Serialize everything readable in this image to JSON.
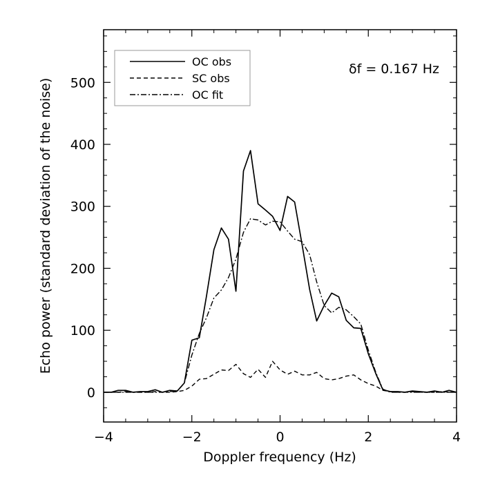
{
  "chart_data": {
    "type": "line",
    "title": "",
    "xlabel": "Doppler frequency (Hz)",
    "ylabel": "Echo power (standard deviation of the noise)",
    "xlim": [
      -4,
      4
    ],
    "ylim": [
      -48,
      585
    ],
    "xticks": [
      -4,
      -2,
      0,
      2,
      4
    ],
    "yticks": [
      0,
      100,
      200,
      300,
      400,
      500
    ],
    "grid": false,
    "legend_position": "top-left",
    "annotation": "δf = 0.167 Hz",
    "series": [
      {
        "name": "OC obs",
        "style": "solid",
        "x": [
          -4.0,
          -3.83,
          -3.67,
          -3.5,
          -3.33,
          -3.17,
          -3.0,
          -2.83,
          -2.67,
          -2.5,
          -2.33,
          -2.17,
          -2.0,
          -1.83,
          -1.67,
          -1.5,
          -1.33,
          -1.17,
          -1.0,
          -0.83,
          -0.67,
          -0.5,
          -0.33,
          -0.17,
          0.0,
          0.17,
          0.33,
          0.5,
          0.67,
          0.83,
          1.0,
          1.17,
          1.33,
          1.5,
          1.67,
          1.83,
          2.0,
          2.17,
          2.33,
          2.5,
          2.67,
          2.83,
          3.0,
          3.17,
          3.33,
          3.5,
          3.67,
          3.83,
          4.0
        ],
        "values": [
          0,
          0,
          3,
          3,
          0,
          1,
          1,
          4,
          0,
          3,
          2,
          15,
          84,
          88,
          154,
          230,
          265,
          247,
          163,
          357,
          390,
          304,
          294,
          284,
          261,
          316,
          307,
          238,
          166,
          115,
          140,
          160,
          154,
          116,
          104,
          103,
          62,
          30,
          4,
          1,
          1,
          0,
          2,
          1,
          0,
          2,
          0,
          3,
          0
        ]
      },
      {
        "name": "SC obs",
        "style": "dashed",
        "x": [
          -4.0,
          -3.83,
          -3.67,
          -3.5,
          -3.33,
          -3.17,
          -3.0,
          -2.83,
          -2.67,
          -2.5,
          -2.33,
          -2.17,
          -2.0,
          -1.83,
          -1.67,
          -1.5,
          -1.33,
          -1.17,
          -1.0,
          -0.83,
          -0.67,
          -0.5,
          -0.33,
          -0.17,
          0.0,
          0.17,
          0.33,
          0.5,
          0.67,
          0.83,
          1.0,
          1.17,
          1.33,
          1.5,
          1.67,
          1.83,
          2.0,
          2.17,
          2.33,
          2.5,
          2.67,
          2.83,
          3.0,
          3.17,
          3.33,
          3.5,
          3.67,
          3.83,
          4.0
        ],
        "values": [
          0,
          0,
          0,
          1,
          0,
          0,
          0,
          1,
          0,
          0,
          1,
          3,
          10,
          21,
          22,
          29,
          36,
          35,
          45,
          30,
          24,
          37,
          24,
          50,
          36,
          29,
          34,
          28,
          28,
          32,
          22,
          20,
          22,
          26,
          28,
          20,
          14,
          10,
          3,
          1,
          0,
          0,
          1,
          0,
          0,
          0,
          1,
          0,
          0
        ]
      },
      {
        "name": "OC fit",
        "style": "dashdot",
        "x": [
          -4.0,
          -3.83,
          -3.67,
          -3.5,
          -3.33,
          -3.17,
          -3.0,
          -2.83,
          -2.67,
          -2.5,
          -2.33,
          -2.17,
          -2.0,
          -1.83,
          -1.67,
          -1.5,
          -1.33,
          -1.17,
          -1.0,
          -0.83,
          -0.67,
          -0.5,
          -0.33,
          -0.17,
          0.0,
          0.17,
          0.33,
          0.5,
          0.67,
          0.83,
          1.0,
          1.17,
          1.33,
          1.5,
          1.67,
          1.83,
          2.0,
          2.17,
          2.33,
          2.5,
          2.67,
          2.83,
          3.0,
          3.17,
          3.33,
          3.5,
          3.67,
          3.83,
          4.0
        ],
        "values": [
          0,
          0,
          0,
          0,
          0,
          0,
          0,
          0,
          0,
          1,
          2,
          15,
          60,
          95,
          120,
          152,
          165,
          185,
          215,
          258,
          280,
          278,
          270,
          276,
          275,
          260,
          247,
          243,
          222,
          178,
          140,
          128,
          137,
          133,
          122,
          110,
          68,
          32,
          5,
          0,
          0,
          0,
          0,
          0,
          0,
          0,
          0,
          0,
          0
        ]
      }
    ]
  }
}
